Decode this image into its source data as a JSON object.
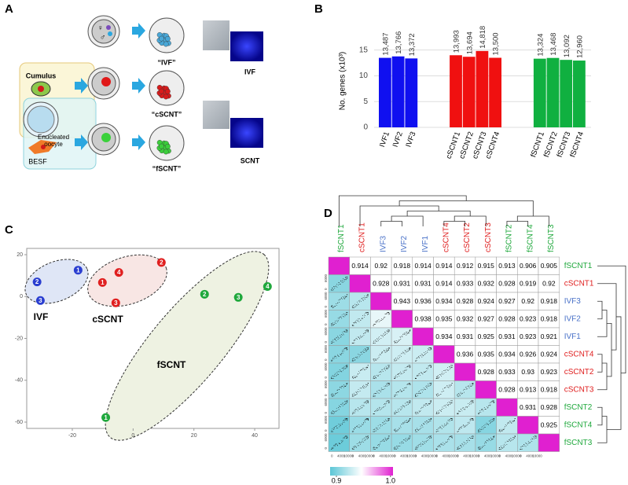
{
  "panel_labels": [
    "A",
    "B",
    "C",
    "D"
  ],
  "diagram": {
    "female": "♀",
    "male": "♂",
    "cumulus": "Cumulus",
    "oocyte": [
      "Enucleated",
      "oocyte"
    ],
    "besf": "BESF",
    "ivf_embryo": "“IVF”",
    "cscnt_embryo": "“cSCNT”",
    "fscnt_embryo": "“fSCNT”",
    "ivf_image": "IVF",
    "scnt_image": "SCNT"
  },
  "chart_data": [
    {
      "type": "bar",
      "ylabel": "No. genes (x10³)",
      "categories": [
        "IVF1",
        "IVF2",
        "IVF3",
        "cSCNT1",
        "cSCNT2",
        "cSCNT3",
        "cSCNT4",
        "fSCNT1",
        "fSCNT2",
        "fSCNT3",
        "fSCNT4"
      ],
      "values": [
        13.487,
        13.766,
        13.372,
        13.993,
        13.694,
        14.818,
        13.5,
        13.324,
        13.468,
        13.092,
        12.96
      ],
      "value_labels": [
        "13,487",
        "13,766",
        "13,372",
        "13,993",
        "13,694",
        "14,818",
        "13,500",
        "13,324",
        "13,468",
        "13,092",
        "12,960"
      ],
      "colors": [
        "#1010f0",
        "#1010f0",
        "#1010f0",
        "#f01010",
        "#f01010",
        "#f01010",
        "#f01010",
        "#10b040",
        "#10b040",
        "#10b040",
        "#10b040"
      ],
      "ylim": [
        0,
        18
      ],
      "yticks": [
        0,
        5,
        10,
        15
      ],
      "grid": true
    },
    {
      "type": "scatter",
      "xlim": [
        -35,
        48
      ],
      "ylim": [
        -63,
        23
      ],
      "xticks": [
        -20,
        0,
        20,
        40
      ],
      "yticks": [
        -60,
        -40,
        -20,
        0,
        20
      ],
      "series": [
        {
          "name": "IVF",
          "color": "#2a3ed0",
          "x": [
            -18.1,
            -31.6,
            -30.5
          ],
          "y": [
            12.6,
            7.0,
            -1.9
          ],
          "point_labels": [
            "1",
            "2",
            "3"
          ]
        },
        {
          "name": "cSCNT",
          "color": "#e02020",
          "x": [
            -10.1,
            9.3,
            -5.7,
            -4.7
          ],
          "y": [
            6.7,
            16.3,
            -3.0,
            11.5
          ],
          "point_labels": [
            "1",
            "2",
            "3",
            "4"
          ]
        },
        {
          "name": "fSCNT",
          "color": "#1fa83c",
          "x": [
            -9.0,
            23.5,
            34.6,
            44.2
          ],
          "y": [
            -57.8,
            1.1,
            -0.4,
            4.8
          ],
          "point_labels": [
            "1",
            "2",
            "3",
            "4"
          ]
        }
      ]
    }
  ],
  "matrix": {
    "labels": [
      "fSCNT1",
      "cSCNT1",
      "IVF3",
      "IVF2",
      "IVF1",
      "cSCNT4",
      "cSCNT2",
      "cSCNT3",
      "fSCNT2",
      "fSCNT4",
      "fSCNT3"
    ],
    "label_colors": [
      "#1fa83c",
      "#e02020",
      "#4a72c8",
      "#4a72c8",
      "#4a72c8",
      "#e02020",
      "#e02020",
      "#e02020",
      "#1fa83c",
      "#1fa83c",
      "#1fa83c"
    ],
    "values": [
      [
        0.914,
        0.92,
        0.918,
        0.914,
        0.914,
        0.912,
        0.915,
        0.913,
        0.906,
        0.905
      ],
      [
        0.928,
        0.931,
        0.931,
        0.914,
        0.933,
        0.932,
        0.928,
        0.919,
        0.92
      ],
      [
        0.943,
        0.936,
        0.934,
        0.928,
        0.924,
        0.927,
        0.92,
        0.918
      ],
      [
        0.938,
        0.935,
        0.932,
        0.927,
        0.928,
        0.923,
        0.918
      ],
      [
        0.934,
        0.931,
        0.925,
        0.931,
        0.923,
        0.921
      ],
      [
        0.936,
        0.935,
        0.934,
        0.926,
        0.924
      ],
      [
        0.928,
        0.933,
        0.93,
        0.923
      ],
      [
        0.928,
        0.913,
        0.918
      ],
      [
        0.931,
        0.928
      ],
      [
        0.925
      ]
    ],
    "diagonal_color": "#e020d0",
    "colorbar": {
      "lim": [
        0.9,
        1
      ],
      "ticks": [
        0.9,
        {
          "value": 1,
          "label": "1.0"
        }
      ]
    },
    "scatter_x_labels": [
      "0",
      "4000",
      "10000"
    ],
    "scatter_y_labels": [
      "0",
      "6000"
    ]
  }
}
